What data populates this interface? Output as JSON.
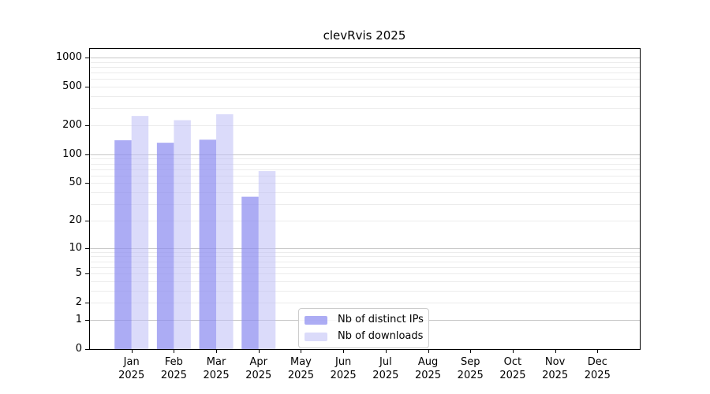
{
  "chart_data": {
    "type": "bar",
    "title": "clevRvis 2025",
    "x_categories": [
      "Jan",
      "Feb",
      "Mar",
      "Apr",
      "May",
      "Jun",
      "Jul",
      "Aug",
      "Sep",
      "Oct",
      "Nov",
      "Dec"
    ],
    "x_year_label": "2025",
    "series": [
      {
        "name": "Nb of distinct IPs",
        "color": "rgba(140,140,240,0.72)",
        "values": [
          140,
          132,
          142,
          36,
          0,
          0,
          0,
          0,
          0,
          0,
          0,
          0
        ]
      },
      {
        "name": "Nb of downloads",
        "color": "rgba(190,190,245,0.55)",
        "values": [
          250,
          226,
          260,
          67,
          0,
          0,
          0,
          0,
          0,
          0,
          0,
          0
        ]
      }
    ],
    "y_ticks": [
      0,
      1,
      2,
      5,
      10,
      20,
      50,
      100,
      200,
      500,
      1000
    ],
    "y_scale": "log1p",
    "y_max": 1253,
    "ylim": [
      0,
      1253
    ],
    "grid": {
      "major_at": [
        1,
        10,
        100,
        1000
      ],
      "major_color": "#c7c7c7",
      "minor_color": "#ececec"
    },
    "legend": {
      "position": "lower-center"
    },
    "axis_color": "#000000",
    "background_color": "#ffffff"
  }
}
